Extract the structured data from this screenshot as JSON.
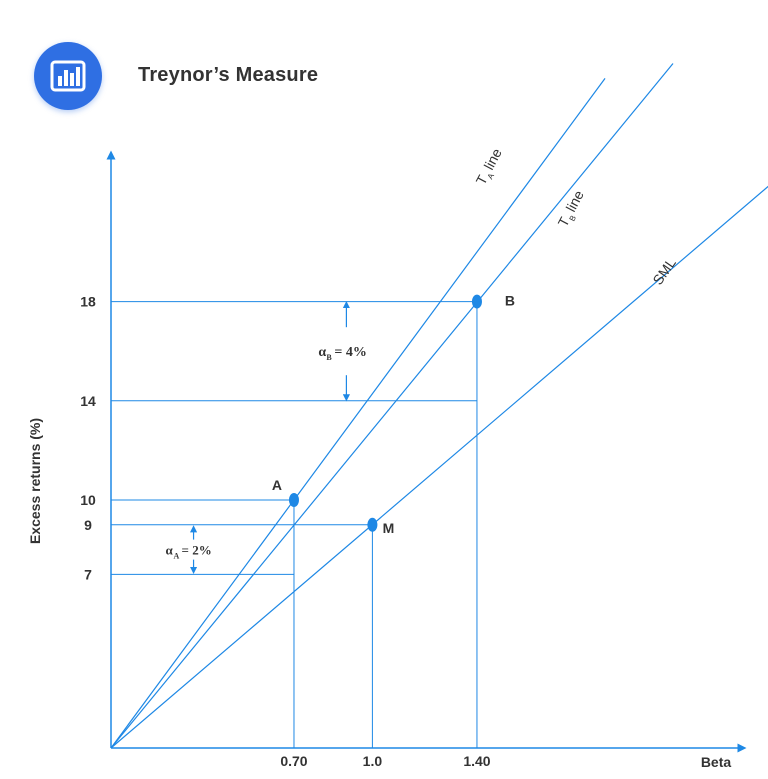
{
  "header": {
    "title": "Treynor’s Measure",
    "icon": "bar-chart-icon"
  },
  "colors": {
    "accent": "#2f6fe3",
    "line": "#1e88e5",
    "text": "#333333"
  },
  "chart_data": {
    "type": "line",
    "title": "Treynor’s Measure",
    "xlabel": "Beta",
    "ylabel": "Excess returns (%)",
    "xlim": [
      0,
      2.1
    ],
    "ylim": [
      0,
      25.5
    ],
    "x_ticks": [
      "0.70",
      "1.0",
      "1.40"
    ],
    "y_ticks": [
      "18",
      "14",
      "10",
      "9",
      "7"
    ],
    "grid": false,
    "series": [
      {
        "name": "T_A line",
        "x": [
          0,
          1.89
        ],
        "y": [
          0,
          27
        ]
      },
      {
        "name": "T_B line",
        "x": [
          0,
          2.15
        ],
        "y": [
          0,
          27.6
        ]
      },
      {
        "name": "SML",
        "x": [
          0,
          2.62
        ],
        "y": [
          0,
          23.6
        ]
      }
    ],
    "points": [
      {
        "label": "A",
        "x": 0.7,
        "y": 10
      },
      {
        "label": "M",
        "x": 1.0,
        "y": 9
      },
      {
        "label": "B",
        "x": 1.4,
        "y": 18
      }
    ],
    "line_labels": {
      "ta": {
        "main": "T",
        "sub": "A",
        "rest": "line"
      },
      "tb": {
        "main": "T",
        "sub": "B",
        "rest": "line"
      },
      "sml": "SML"
    },
    "annotations": [
      {
        "main": "α",
        "sub": "B",
        "rest": "= 4%",
        "from": 14,
        "to": 18,
        "x": 1.0
      },
      {
        "main": "α",
        "sub": "A",
        "rest": "= 2%",
        "from": 7,
        "to": 9,
        "x": 0.4
      }
    ]
  }
}
